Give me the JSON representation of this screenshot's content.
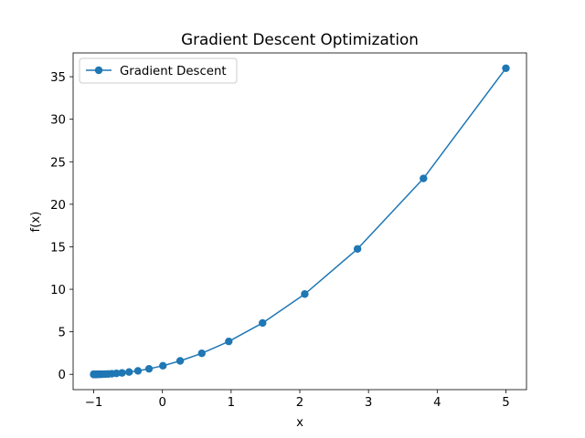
{
  "chart_data": {
    "type": "line",
    "title": "Gradient Descent Optimization",
    "xlabel": "x",
    "ylabel": "f(x)",
    "xlim": [
      -1.3,
      5.3
    ],
    "ylim": [
      -1.8,
      37.8
    ],
    "xticks": [
      -1,
      0,
      1,
      2,
      3,
      4,
      5
    ],
    "xtick_labels": [
      "−1",
      "0",
      "1",
      "2",
      "3",
      "4",
      "5"
    ],
    "yticks": [
      0,
      5,
      10,
      15,
      20,
      25,
      30,
      35
    ],
    "ytick_labels": [
      "0",
      "5",
      "10",
      "15",
      "20",
      "25",
      "30",
      "35"
    ],
    "grid": false,
    "legend_position": "upper-left",
    "series": [
      {
        "name": "Gradient Descent",
        "color": "#1f77b4",
        "marker": "circle",
        "x": [
          5.0,
          3.8,
          2.84,
          2.072,
          1.458,
          0.966,
          0.573,
          0.258,
          0.007,
          -0.195,
          -0.356,
          -0.485,
          -0.588,
          -0.67,
          -0.736,
          -0.789,
          -0.831,
          -0.865,
          -0.892,
          -0.914,
          -0.931,
          -0.945,
          -0.956,
          -0.965,
          -0.972,
          -0.977,
          -0.982,
          -0.986,
          -0.988,
          -0.991,
          -0.993,
          -0.994,
          -0.995,
          -0.996,
          -0.997,
          -0.998,
          -0.998,
          -0.999,
          -0.999,
          -0.999
        ],
        "y": [
          36.0,
          23.04,
          14.75,
          9.44,
          6.04,
          3.87,
          2.47,
          1.58,
          1.01,
          0.65,
          0.41,
          0.27,
          0.17,
          0.11,
          0.07,
          0.04,
          0.03,
          0.02,
          0.01,
          0.01,
          0.005,
          0.003,
          0.002,
          0.001,
          0.001,
          0.0,
          0.0,
          0.0,
          0.0,
          0.0,
          0.0,
          0.0,
          0.0,
          0.0,
          0.0,
          0.0,
          0.0,
          0.0,
          0.0,
          0.0
        ]
      }
    ]
  }
}
